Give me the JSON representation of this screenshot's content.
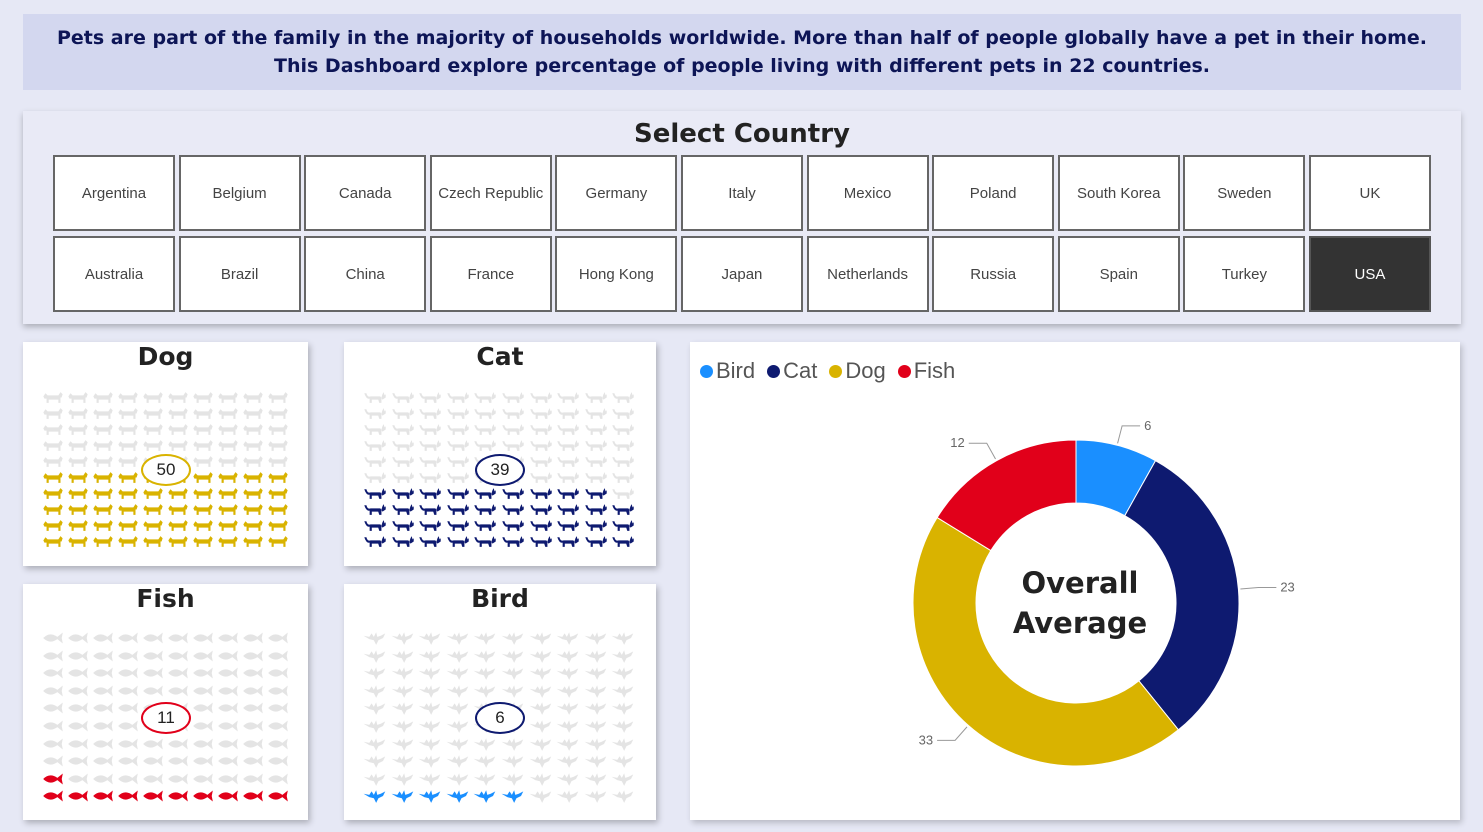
{
  "header": {
    "text": "Pets are part of the family in the majority of households worldwide. More than half of people globally have a pet in their home. This Dashboard explore percentage of people living with different pets in 22 countries."
  },
  "slicer": {
    "title": "Select Country",
    "countries": [
      "Argentina",
      "Belgium",
      "Canada",
      "Czech Republic",
      "Germany",
      "Italy",
      "Mexico",
      "Poland",
      "South Korea",
      "Sweden",
      "UK",
      "Australia",
      "Brazil",
      "China",
      "France",
      "Hong Kong",
      "Japan",
      "Netherlands",
      "Russia",
      "Spain",
      "Turkey",
      "USA"
    ],
    "selected": "USA"
  },
  "pets": [
    {
      "name": "Dog",
      "value": 50,
      "color": "#d9b300",
      "icon": "dog-icon"
    },
    {
      "name": "Cat",
      "value": 39,
      "color": "#0e1a70",
      "icon": "cat-icon"
    },
    {
      "name": "Fish",
      "value": 11,
      "color": "#e1001a",
      "icon": "fish-icon"
    },
    {
      "name": "Bird",
      "value": 6,
      "color": "#1a8fff",
      "icon": "bird-icon"
    }
  ],
  "chart_data": {
    "type": "pie",
    "title": "",
    "center_label": "Overall Average",
    "legend_position": "top-left",
    "categories": [
      "Bird",
      "Cat",
      "Dog",
      "Fish"
    ],
    "values": [
      6,
      23,
      33,
      12
    ],
    "colors": [
      "#1a8fff",
      "#0e1a70",
      "#d9b300",
      "#e1001a"
    ]
  }
}
